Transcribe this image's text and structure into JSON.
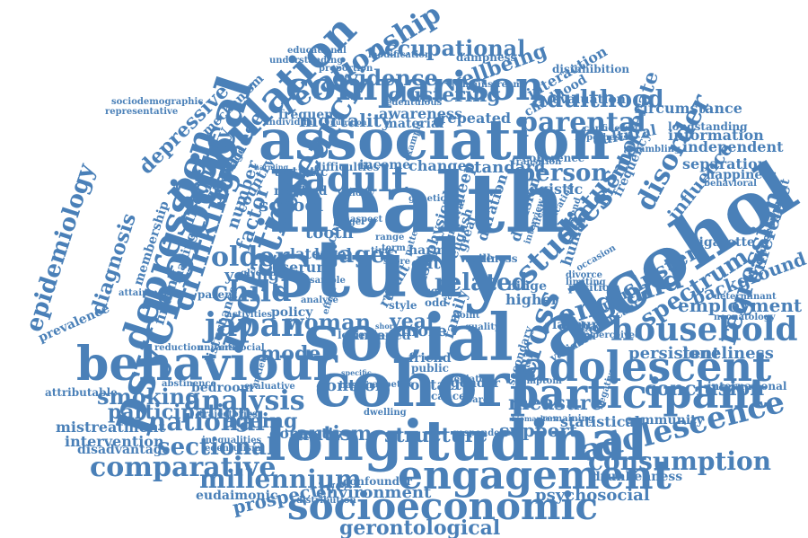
{
  "colors": {
    "ink": "#4a80b8",
    "background": "#ffffff"
  },
  "words": [
    {
      "id": "health",
      "text": "health"
    },
    {
      "id": "study",
      "text": "study"
    },
    {
      "id": "social",
      "text": "social"
    },
    {
      "id": "alcohol",
      "text": "alcohol"
    },
    {
      "id": "association",
      "text": "association"
    },
    {
      "id": "cohort",
      "text": "cohort"
    },
    {
      "id": "longitudinal",
      "text": "longitudinal"
    },
    {
      "id": "behaviour",
      "text": "behaviour"
    },
    {
      "id": "psychological",
      "text": "psychological"
    },
    {
      "id": "population",
      "text": "population"
    },
    {
      "id": "comparison",
      "text": "comparison"
    },
    {
      "id": "adolescent",
      "text": "adolescent"
    },
    {
      "id": "participant",
      "text": "participant"
    },
    {
      "id": "engagement",
      "text": "engagement"
    },
    {
      "id": "socioeconomic",
      "text": "socioeconomic"
    },
    {
      "id": "adolescence",
      "text": "adolescence"
    },
    {
      "id": "depression",
      "text": "depression"
    },
    {
      "id": "isolation",
      "text": "isolation"
    },
    {
      "id": "household",
      "text": "household"
    },
    {
      "id": "adult",
      "text": "adult"
    },
    {
      "id": "japan",
      "text": "japan"
    },
    {
      "id": "cross",
      "text": "cross"
    },
    {
      "id": "england",
      "text": "england"
    },
    {
      "id": "research",
      "text": "research"
    },
    {
      "id": "drinking",
      "text": "drinking"
    },
    {
      "id": "relationship",
      "text": "relationship"
    },
    {
      "id": "parental",
      "text": "parental"
    },
    {
      "id": "studies",
      "text": "studies"
    },
    {
      "id": "analysis",
      "text": "analysis"
    },
    {
      "id": "consumption",
      "text": "consumption"
    },
    {
      "id": "comparative",
      "text": "comparative"
    },
    {
      "id": "regression",
      "text": "regression"
    },
    {
      "id": "spectrum",
      "text": "spectrum"
    },
    {
      "id": "epidemiology",
      "text": "epidemiology"
    },
    {
      "id": "millennium",
      "text": "millennium"
    },
    {
      "id": "national",
      "text": "national"
    },
    {
      "id": "child",
      "text": "child"
    },
    {
      "id": "older",
      "text": "older"
    },
    {
      "id": "disorder",
      "text": "disorder"
    },
    {
      "id": "occupational",
      "text": "occupational"
    },
    {
      "id": "person",
      "text": "person"
    },
    {
      "id": "adulthood",
      "text": "adulthood"
    },
    {
      "id": "sectional",
      "text": "sectional"
    },
    {
      "id": "evidence",
      "text": "evidence"
    },
    {
      "id": "wellbeing",
      "text": "wellbeing"
    },
    {
      "id": "woman",
      "text": "woman"
    },
    {
      "id": "smoking",
      "text": "smoking"
    },
    {
      "id": "participation",
      "text": "participation"
    },
    {
      "id": "conclusion",
      "text": "conclusion"
    },
    {
      "id": "employment",
      "text": "employment"
    },
    {
      "id": "background",
      "text": "background"
    },
    {
      "id": "cluster",
      "text": "cluster"
    },
    {
      "id": "diagnosis",
      "text": "diagnosis"
    },
    {
      "id": "mortality",
      "text": "mortality"
    },
    {
      "id": "status",
      "text": "status"
    },
    {
      "id": "japanese",
      "text": "japanese"
    },
    {
      "id": "inequality",
      "text": "inequality"
    },
    {
      "id": "depressive",
      "text": "depressive"
    },
    {
      "id": "gerontological",
      "text": "gerontological"
    },
    {
      "id": "prospective",
      "text": "prospective"
    },
    {
      "id": "psychosocial",
      "text": "psychosocial"
    },
    {
      "id": "drunkenness",
      "text": "drunkenness"
    },
    {
      "id": "ageing",
      "text": "ageing"
    },
    {
      "id": "measure",
      "text": "measure"
    },
    {
      "id": "mental",
      "text": "mental"
    },
    {
      "id": "moderate",
      "text": "moderate"
    },
    {
      "id": "autism",
      "text": "autism"
    },
    {
      "id": "model",
      "text": "model"
    },
    {
      "id": "year",
      "text": "year"
    },
    {
      "id": "related",
      "text": "related"
    },
    {
      "id": "jages",
      "text": "jages"
    },
    {
      "id": "factor",
      "text": "factor"
    },
    {
      "id": "school",
      "text": "school"
    },
    {
      "id": "influence",
      "text": "influence"
    },
    {
      "id": "persistent",
      "text": "persistent"
    },
    {
      "id": "loneliness",
      "text": "loneliness"
    },
    {
      "id": "young",
      "text": "young"
    },
    {
      "id": "difference",
      "text": "difference"
    },
    {
      "id": "clustering",
      "text": "clustering"
    },
    {
      "id": "structure",
      "text": "structure"
    },
    {
      "id": "support",
      "text": "support"
    },
    {
      "id": "environment",
      "text": "environment"
    },
    {
      "id": "mistreatment",
      "text": "mistreatment"
    },
    {
      "id": "intervention",
      "text": "intervention"
    },
    {
      "id": "disadvantage",
      "text": "disadvantage"
    },
    {
      "id": "sociodemographic",
      "text": "sociodemographic"
    },
    {
      "id": "representative",
      "text": "representative"
    },
    {
      "id": "educational",
      "text": "educational"
    },
    {
      "id": "understanding",
      "text": "understanding"
    },
    {
      "id": "interaction",
      "text": "interaction"
    },
    {
      "id": "childhood",
      "text": "childhood"
    },
    {
      "id": "circumstance",
      "text": "circumstance"
    },
    {
      "id": "information",
      "text": "information"
    },
    {
      "id": "independent",
      "text": "independent"
    },
    {
      "id": "separation",
      "text": "separation"
    },
    {
      "id": "happiness",
      "text": "happiness"
    },
    {
      "id": "cigarette",
      "text": "cigarette"
    },
    {
      "id": "development",
      "text": "development"
    },
    {
      "id": "statistical",
      "text": "statistical"
    },
    {
      "id": "community",
      "text": "community"
    },
    {
      "id": "international",
      "text": "international"
    },
    {
      "id": "eudaimonic",
      "text": "eudaimonic"
    },
    {
      "id": "distribution",
      "text": "distribution"
    },
    {
      "id": "confounder",
      "text": "confounder"
    },
    {
      "id": "attributable",
      "text": "attributable"
    },
    {
      "id": "prevalence",
      "text": "prevalence"
    },
    {
      "id": "bedroom",
      "text": "bedroom"
    },
    {
      "id": "domestic",
      "text": "domestic"
    },
    {
      "id": "control",
      "text": "control"
    },
    {
      "id": "contact",
      "text": "contact"
    },
    {
      "id": "gender",
      "text": "gender"
    },
    {
      "id": "evaluation",
      "text": "evaluation"
    },
    {
      "id": "cultural",
      "text": "cultural"
    },
    {
      "id": "repeated",
      "text": "repeated"
    },
    {
      "id": "awareness",
      "text": "awareness"
    },
    {
      "id": "material",
      "text": "material"
    },
    {
      "id": "frequent",
      "text": "frequent"
    },
    {
      "id": "sleep",
      "text": "sleep"
    },
    {
      "id": "standard",
      "text": "standard"
    },
    {
      "id": "logistic",
      "text": "logistic"
    },
    {
      "id": "change",
      "text": "change"
    },
    {
      "id": "income",
      "text": "income"
    },
    {
      "id": "difficulties",
      "text": "difficulties"
    },
    {
      "id": "autistic",
      "text": "autistic"
    },
    {
      "id": "method",
      "text": "method"
    },
    {
      "id": "policy",
      "text": "policy"
    },
    {
      "id": "latent",
      "text": "latent"
    },
    {
      "id": "level",
      "text": "level"
    },
    {
      "id": "serum",
      "text": "serum"
    },
    {
      "id": "data",
      "text": "data"
    },
    {
      "id": "tooth",
      "text": "tooth"
    },
    {
      "id": "number",
      "text": "number"
    },
    {
      "id": "country",
      "text": "country"
    },
    {
      "id": "mechanism",
      "text": "mechanism"
    },
    {
      "id": "membership",
      "text": "membership"
    },
    {
      "id": "finding",
      "text": "finding"
    },
    {
      "id": "making",
      "text": "making"
    },
    {
      "id": "decision",
      "text": "decision"
    },
    {
      "id": "duration",
      "text": "duration"
    },
    {
      "id": "physical",
      "text": "physical"
    },
    {
      "id": "human",
      "text": "human"
    },
    {
      "id": "family",
      "text": "family"
    },
    {
      "id": "higher",
      "text": "higher"
    },
    {
      "id": "binge",
      "text": "binge"
    },
    {
      "id": "labour",
      "text": "labour"
    },
    {
      "id": "global",
      "text": "global"
    },
    {
      "id": "group",
      "text": "group"
    },
    {
      "id": "position",
      "text": "position"
    },
    {
      "id": "frequency",
      "text": "frequency"
    },
    {
      "id": "longstanding",
      "text": "longstanding"
    },
    {
      "id": "mainstream",
      "text": "mainstream"
    },
    {
      "id": "modification",
      "text": "modification"
    },
    {
      "id": "dampness",
      "text": "dampness"
    },
    {
      "id": "proportion",
      "text": "proportion"
    },
    {
      "id": "edentulous",
      "text": "edentulous"
    },
    {
      "id": "disinhibition",
      "text": "disinhibition"
    },
    {
      "id": "friend",
      "text": "friend"
    },
    {
      "id": "public",
      "text": "public"
    },
    {
      "id": "aged",
      "text": "aged"
    },
    {
      "id": "more",
      "text": "more"
    },
    {
      "id": "index",
      "text": "index"
    },
    {
      "id": "lower",
      "text": "lower"
    },
    {
      "id": "disturbance",
      "text": "disturbance"
    },
    {
      "id": "activities",
      "text": "activities"
    },
    {
      "id": "reduction",
      "text": "reduction"
    },
    {
      "id": "evaluative",
      "text": "evaluative"
    },
    {
      "id": "trajectories",
      "text": "trajectories"
    },
    {
      "id": "inequalities",
      "text": "inequalities"
    },
    {
      "id": "edentulism",
      "text": "edentulism"
    },
    {
      "id": "remaining",
      "text": "remaining"
    },
    {
      "id": "biomarkers",
      "text": "biomarkers"
    },
    {
      "id": "secondary",
      "text": "secondary"
    },
    {
      "id": "neonatology",
      "text": "neonatology"
    },
    {
      "id": "significant",
      "text": "significant"
    },
    {
      "id": "variable",
      "text": "variable"
    },
    {
      "id": "perceived",
      "text": "perceived"
    },
    {
      "id": "determinant",
      "text": "determinant"
    },
    {
      "id": "behavioral",
      "text": "behavioral"
    },
    {
      "id": "gambling",
      "text": "gambling"
    },
    {
      "id": "confidence",
      "text": "confidence"
    },
    {
      "id": "hypothesis",
      "text": "hypothesis"
    },
    {
      "id": "attainment",
      "text": "attainment"
    },
    {
      "id": "parent",
      "text": "parent"
    },
    {
      "id": "glycemic",
      "text": "glycemic"
    },
    {
      "id": "coverage",
      "text": "coverage"
    },
    {
      "id": "individual",
      "text": "individual"
    },
    {
      "id": "nutrition",
      "text": "nutrition"
    },
    {
      "id": "wave",
      "text": "wave"
    },
    {
      "id": "illness",
      "text": "illness"
    },
    {
      "id": "great",
      "text": "great"
    },
    {
      "id": "english",
      "text": "english"
    },
    {
      "id": "survival",
      "text": "survival"
    },
    {
      "id": "coherence",
      "text": "coherence"
    },
    {
      "id": "transition",
      "text": "transition"
    },
    {
      "id": "genetic",
      "text": "genetic"
    },
    {
      "id": "harm",
      "text": "harm"
    },
    {
      "id": "risk",
      "text": "risk"
    },
    {
      "id": "ratio",
      "text": "ratio"
    },
    {
      "id": "odd",
      "text": "odd"
    },
    {
      "id": "self",
      "text": "self"
    },
    {
      "id": "life",
      "text": "life"
    },
    {
      "id": "style",
      "text": "style"
    },
    {
      "id": "cancer",
      "text": "cancer"
    },
    {
      "id": "result",
      "text": "result"
    },
    {
      "id": "abstinence",
      "text": "abstinence"
    },
    {
      "id": "appetite",
      "text": "appetite"
    },
    {
      "id": "dwelling",
      "text": "dwelling"
    },
    {
      "id": "baseline",
      "text": "baseline"
    },
    {
      "id": "respondent",
      "text": "respondent"
    },
    {
      "id": "economic",
      "text": "economic"
    },
    {
      "id": "antisocial",
      "text": "antisocial"
    },
    {
      "id": "universal",
      "text": "universal"
    },
    {
      "id": "negative",
      "text": "negative"
    },
    {
      "id": "harming",
      "text": "harming"
    },
    {
      "id": "specific",
      "text": "specific"
    },
    {
      "id": "validity",
      "text": "validity"
    },
    {
      "id": "aspect",
      "text": "aspect"
    },
    {
      "id": "longer",
      "text": "longer"
    },
    {
      "id": "range",
      "text": "range"
    },
    {
      "id": "term",
      "text": "term"
    },
    {
      "id": "example",
      "text": "example"
    },
    {
      "id": "analyse",
      "text": "analyse"
    },
    {
      "id": "effect",
      "text": "effect"
    },
    {
      "id": "point",
      "text": "point"
    },
    {
      "id": "divorce",
      "text": "divorce"
    },
    {
      "id": "limiting",
      "text": "limiting"
    },
    {
      "id": "occasion",
      "text": "occasion"
    },
    {
      "id": "education",
      "text": "education"
    },
    {
      "id": "trend",
      "text": "trend"
    },
    {
      "id": "lifestyle",
      "text": "lifestyle"
    },
    {
      "id": "interview",
      "text": "interview"
    },
    {
      "id": "mediator",
      "text": "mediator"
    },
    {
      "id": "symptom",
      "text": "symptom"
    },
    {
      "id": "marital",
      "text": "marital"
    },
    {
      "id": "short",
      "text": "short"
    },
    {
      "id": "time",
      "text": "time"
    },
    {
      "id": "score",
      "text": "score"
    },
    {
      "id": "pattern",
      "text": "pattern"
    },
    {
      "id": "care",
      "text": "care"
    },
    {
      "id": "anxiety",
      "text": "anxiety"
    },
    {
      "id": "sample",
      "text": "sample"
    },
    {
      "id": "quality",
      "text": "quality"
    }
  ]
}
